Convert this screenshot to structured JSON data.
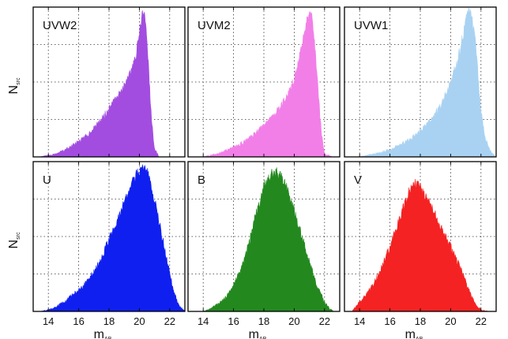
{
  "chart_data": [
    {
      "type": "area",
      "title": "UVW2",
      "color": "#a24de0",
      "x": [
        13.5,
        14.0,
        14.5,
        15.0,
        15.5,
        16.0,
        16.5,
        17.0,
        17.5,
        18.0,
        18.5,
        19.0,
        19.5,
        19.75,
        20.0,
        20.2,
        20.4,
        20.6,
        20.8,
        21.0,
        21.3,
        21.6,
        22.0,
        22.5,
        23.0
      ],
      "y": [
        0.0,
        0.01,
        0.02,
        0.04,
        0.07,
        0.1,
        0.14,
        0.19,
        0.25,
        0.32,
        0.4,
        0.48,
        0.58,
        0.66,
        0.82,
        0.97,
        0.93,
        0.6,
        0.25,
        0.05,
        0.0,
        0.0,
        0.0,
        0.0,
        0.0
      ],
      "xlim": [
        13,
        23
      ],
      "xlabel": "",
      "ylabel": "N",
      "ylabel_sub": "src"
    },
    {
      "type": "area",
      "title": "UVM2",
      "color": "#f27fe8",
      "x": [
        13.5,
        14.0,
        14.5,
        15.0,
        15.5,
        16.0,
        16.5,
        17.0,
        17.5,
        18.0,
        18.5,
        19.0,
        19.5,
        20.0,
        20.25,
        20.5,
        20.75,
        21.0,
        21.2,
        21.4,
        21.6,
        21.8,
        22.0,
        22.5,
        23.0
      ],
      "y": [
        0.0,
        0.0,
        0.01,
        0.02,
        0.04,
        0.06,
        0.09,
        0.12,
        0.16,
        0.21,
        0.26,
        0.32,
        0.4,
        0.52,
        0.62,
        0.74,
        0.87,
        0.97,
        0.92,
        0.7,
        0.4,
        0.15,
        0.02,
        0.0,
        0.0
      ],
      "xlim": [
        13,
        23
      ],
      "xlabel": ""
    },
    {
      "type": "area",
      "title": "UVW1",
      "color": "#a9d2f2",
      "x": [
        13.5,
        14.0,
        14.5,
        15.0,
        15.5,
        16.0,
        16.5,
        17.0,
        17.5,
        18.0,
        18.5,
        19.0,
        19.5,
        20.0,
        20.5,
        20.8,
        21.0,
        21.2,
        21.4,
        21.6,
        21.8,
        22.0,
        22.3,
        22.6,
        23.0
      ],
      "y": [
        0.0,
        0.0,
        0.01,
        0.02,
        0.03,
        0.05,
        0.07,
        0.1,
        0.13,
        0.17,
        0.22,
        0.29,
        0.37,
        0.49,
        0.66,
        0.8,
        0.9,
        0.96,
        0.93,
        0.8,
        0.55,
        0.3,
        0.12,
        0.04,
        0.0
      ],
      "xlim": [
        13,
        23
      ],
      "xlabel": ""
    },
    {
      "type": "area",
      "title": "U",
      "color": "#0f1ff0",
      "x": [
        13.5,
        14.0,
        14.5,
        15.0,
        15.5,
        16.0,
        16.5,
        17.0,
        17.5,
        18.0,
        18.5,
        19.0,
        19.5,
        20.0,
        20.25,
        20.5,
        20.75,
        21.0,
        21.3,
        21.6,
        22.0,
        22.3,
        22.6,
        23.0
      ],
      "y": [
        0.0,
        0.01,
        0.03,
        0.06,
        0.1,
        0.14,
        0.19,
        0.26,
        0.36,
        0.48,
        0.6,
        0.72,
        0.85,
        0.94,
        0.97,
        0.93,
        0.85,
        0.75,
        0.6,
        0.45,
        0.25,
        0.12,
        0.04,
        0.0
      ],
      "xlim": [
        13,
        23
      ],
      "xlabel": "m",
      "xlabel_sub": "AB",
      "ylabel": "N",
      "ylabel_sub": "src"
    },
    {
      "type": "area",
      "title": "B",
      "color": "#23891f",
      "x": [
        13.5,
        14.0,
        14.5,
        15.0,
        15.5,
        16.0,
        16.5,
        17.0,
        17.5,
        18.0,
        18.5,
        19.0,
        19.5,
        20.0,
        20.5,
        21.0,
        21.5,
        22.0,
        22.3,
        22.6,
        23.0
      ],
      "y": [
        0.0,
        0.0,
        0.02,
        0.05,
        0.1,
        0.17,
        0.28,
        0.45,
        0.65,
        0.83,
        0.93,
        0.92,
        0.82,
        0.67,
        0.5,
        0.33,
        0.17,
        0.06,
        0.02,
        0.0,
        0.0
      ],
      "xlim": [
        13,
        23
      ],
      "xlabel": "m",
      "xlabel_sub": "AB"
    },
    {
      "type": "area",
      "title": "V",
      "color": "#f42222",
      "x": [
        13.5,
        14.0,
        14.5,
        15.0,
        15.5,
        16.0,
        16.5,
        17.0,
        17.5,
        18.0,
        18.5,
        19.0,
        19.5,
        20.0,
        20.5,
        21.0,
        21.3,
        21.6,
        22.0,
        22.5,
        23.0
      ],
      "y": [
        0.0,
        0.06,
        0.12,
        0.2,
        0.3,
        0.43,
        0.57,
        0.73,
        0.86,
        0.82,
        0.74,
        0.64,
        0.54,
        0.43,
        0.32,
        0.2,
        0.12,
        0.05,
        0.01,
        0.0,
        0.0
      ],
      "xlim": [
        13,
        23
      ],
      "xlabel": "m",
      "xlabel_sub": "AB"
    }
  ],
  "x_ticks": [
    14,
    16,
    18,
    20,
    22
  ],
  "grid": true
}
